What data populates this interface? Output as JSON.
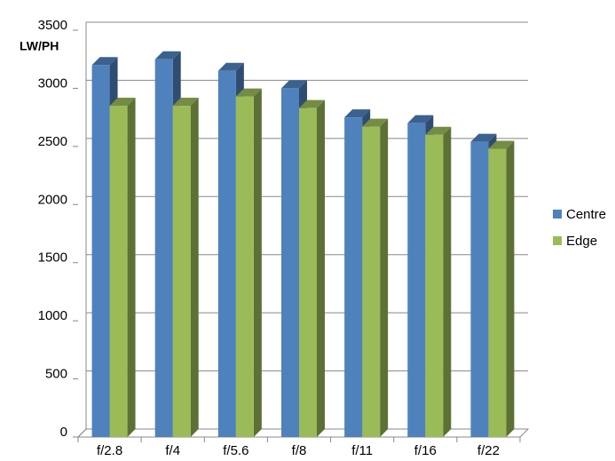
{
  "chart_data": {
    "type": "bar3d",
    "y_label": "LW/PH",
    "categories": [
      "f/2.8",
      "f/4",
      "f/5.6",
      "f/8",
      "f/11",
      "f/16",
      "f/22"
    ],
    "series": [
      {
        "name": "Centre",
        "color": "#4f81bd",
        "values": [
          3200,
          3250,
          3150,
          3000,
          2750,
          2700,
          2540
        ]
      },
      {
        "name": "Edge",
        "color": "#9bbb59",
        "values": [
          2850,
          2850,
          2930,
          2830,
          2670,
          2600,
          2480
        ]
      }
    ],
    "ylim": [
      0,
      3500
    ],
    "yticks": [
      0,
      500,
      1000,
      1500,
      2000,
      2500,
      3000,
      3500
    ],
    "grid": true,
    "legend": "right"
  }
}
